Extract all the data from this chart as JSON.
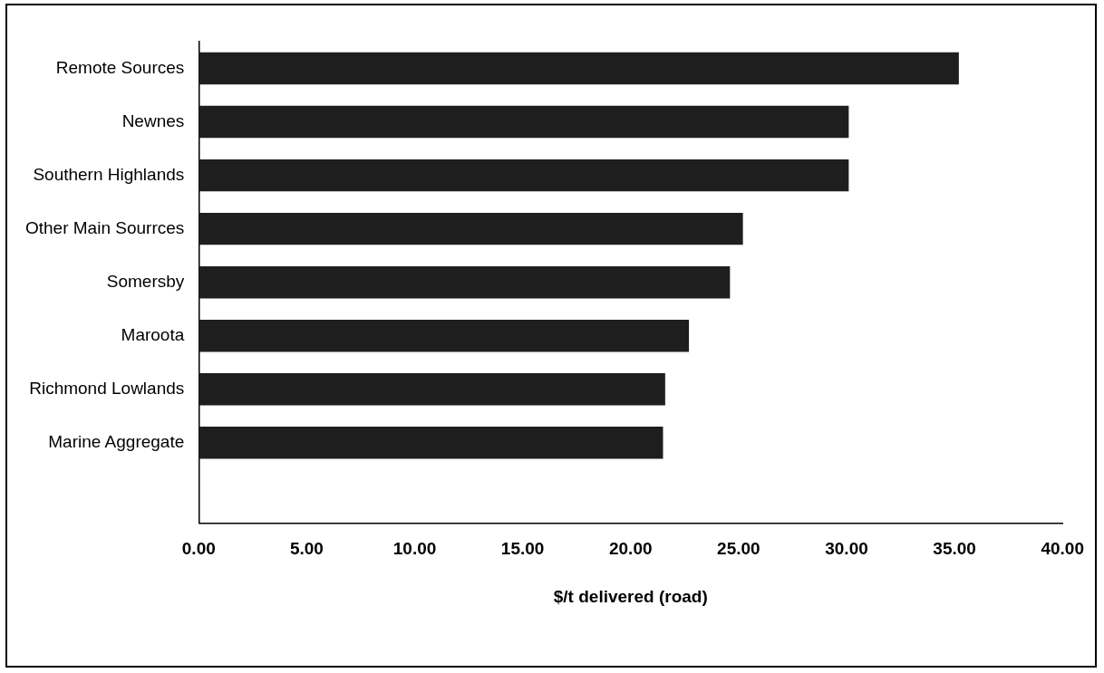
{
  "chart_data": {
    "type": "bar",
    "orientation": "horizontal",
    "xlabel": "$/t delivered (road)",
    "categories": [
      "Remote Sources",
      "Newnes",
      "Southern Highlands",
      "Other Main Sourrces",
      "Somersby",
      "Maroota",
      "Richmond Lowlands",
      "Marine Aggregate",
      null
    ],
    "values": [
      35.2,
      30.1,
      30.1,
      25.2,
      24.6,
      22.7,
      21.6,
      21.5,
      null
    ],
    "color": "#1e1e1e",
    "xlim": [
      0,
      40
    ],
    "xticks": [
      {
        "value": 0,
        "label": "0.00"
      },
      {
        "value": 5,
        "label": "5.00"
      },
      {
        "value": 10,
        "label": "10.00"
      },
      {
        "value": 15,
        "label": "15.00"
      },
      {
        "value": 20,
        "label": "20.00"
      },
      {
        "value": 25,
        "label": "25.00"
      },
      {
        "value": 30,
        "label": "30.00"
      },
      {
        "value": 35,
        "label": "35.00"
      },
      {
        "value": 40,
        "label": "40.00"
      }
    ],
    "grid": false,
    "legend": false
  }
}
